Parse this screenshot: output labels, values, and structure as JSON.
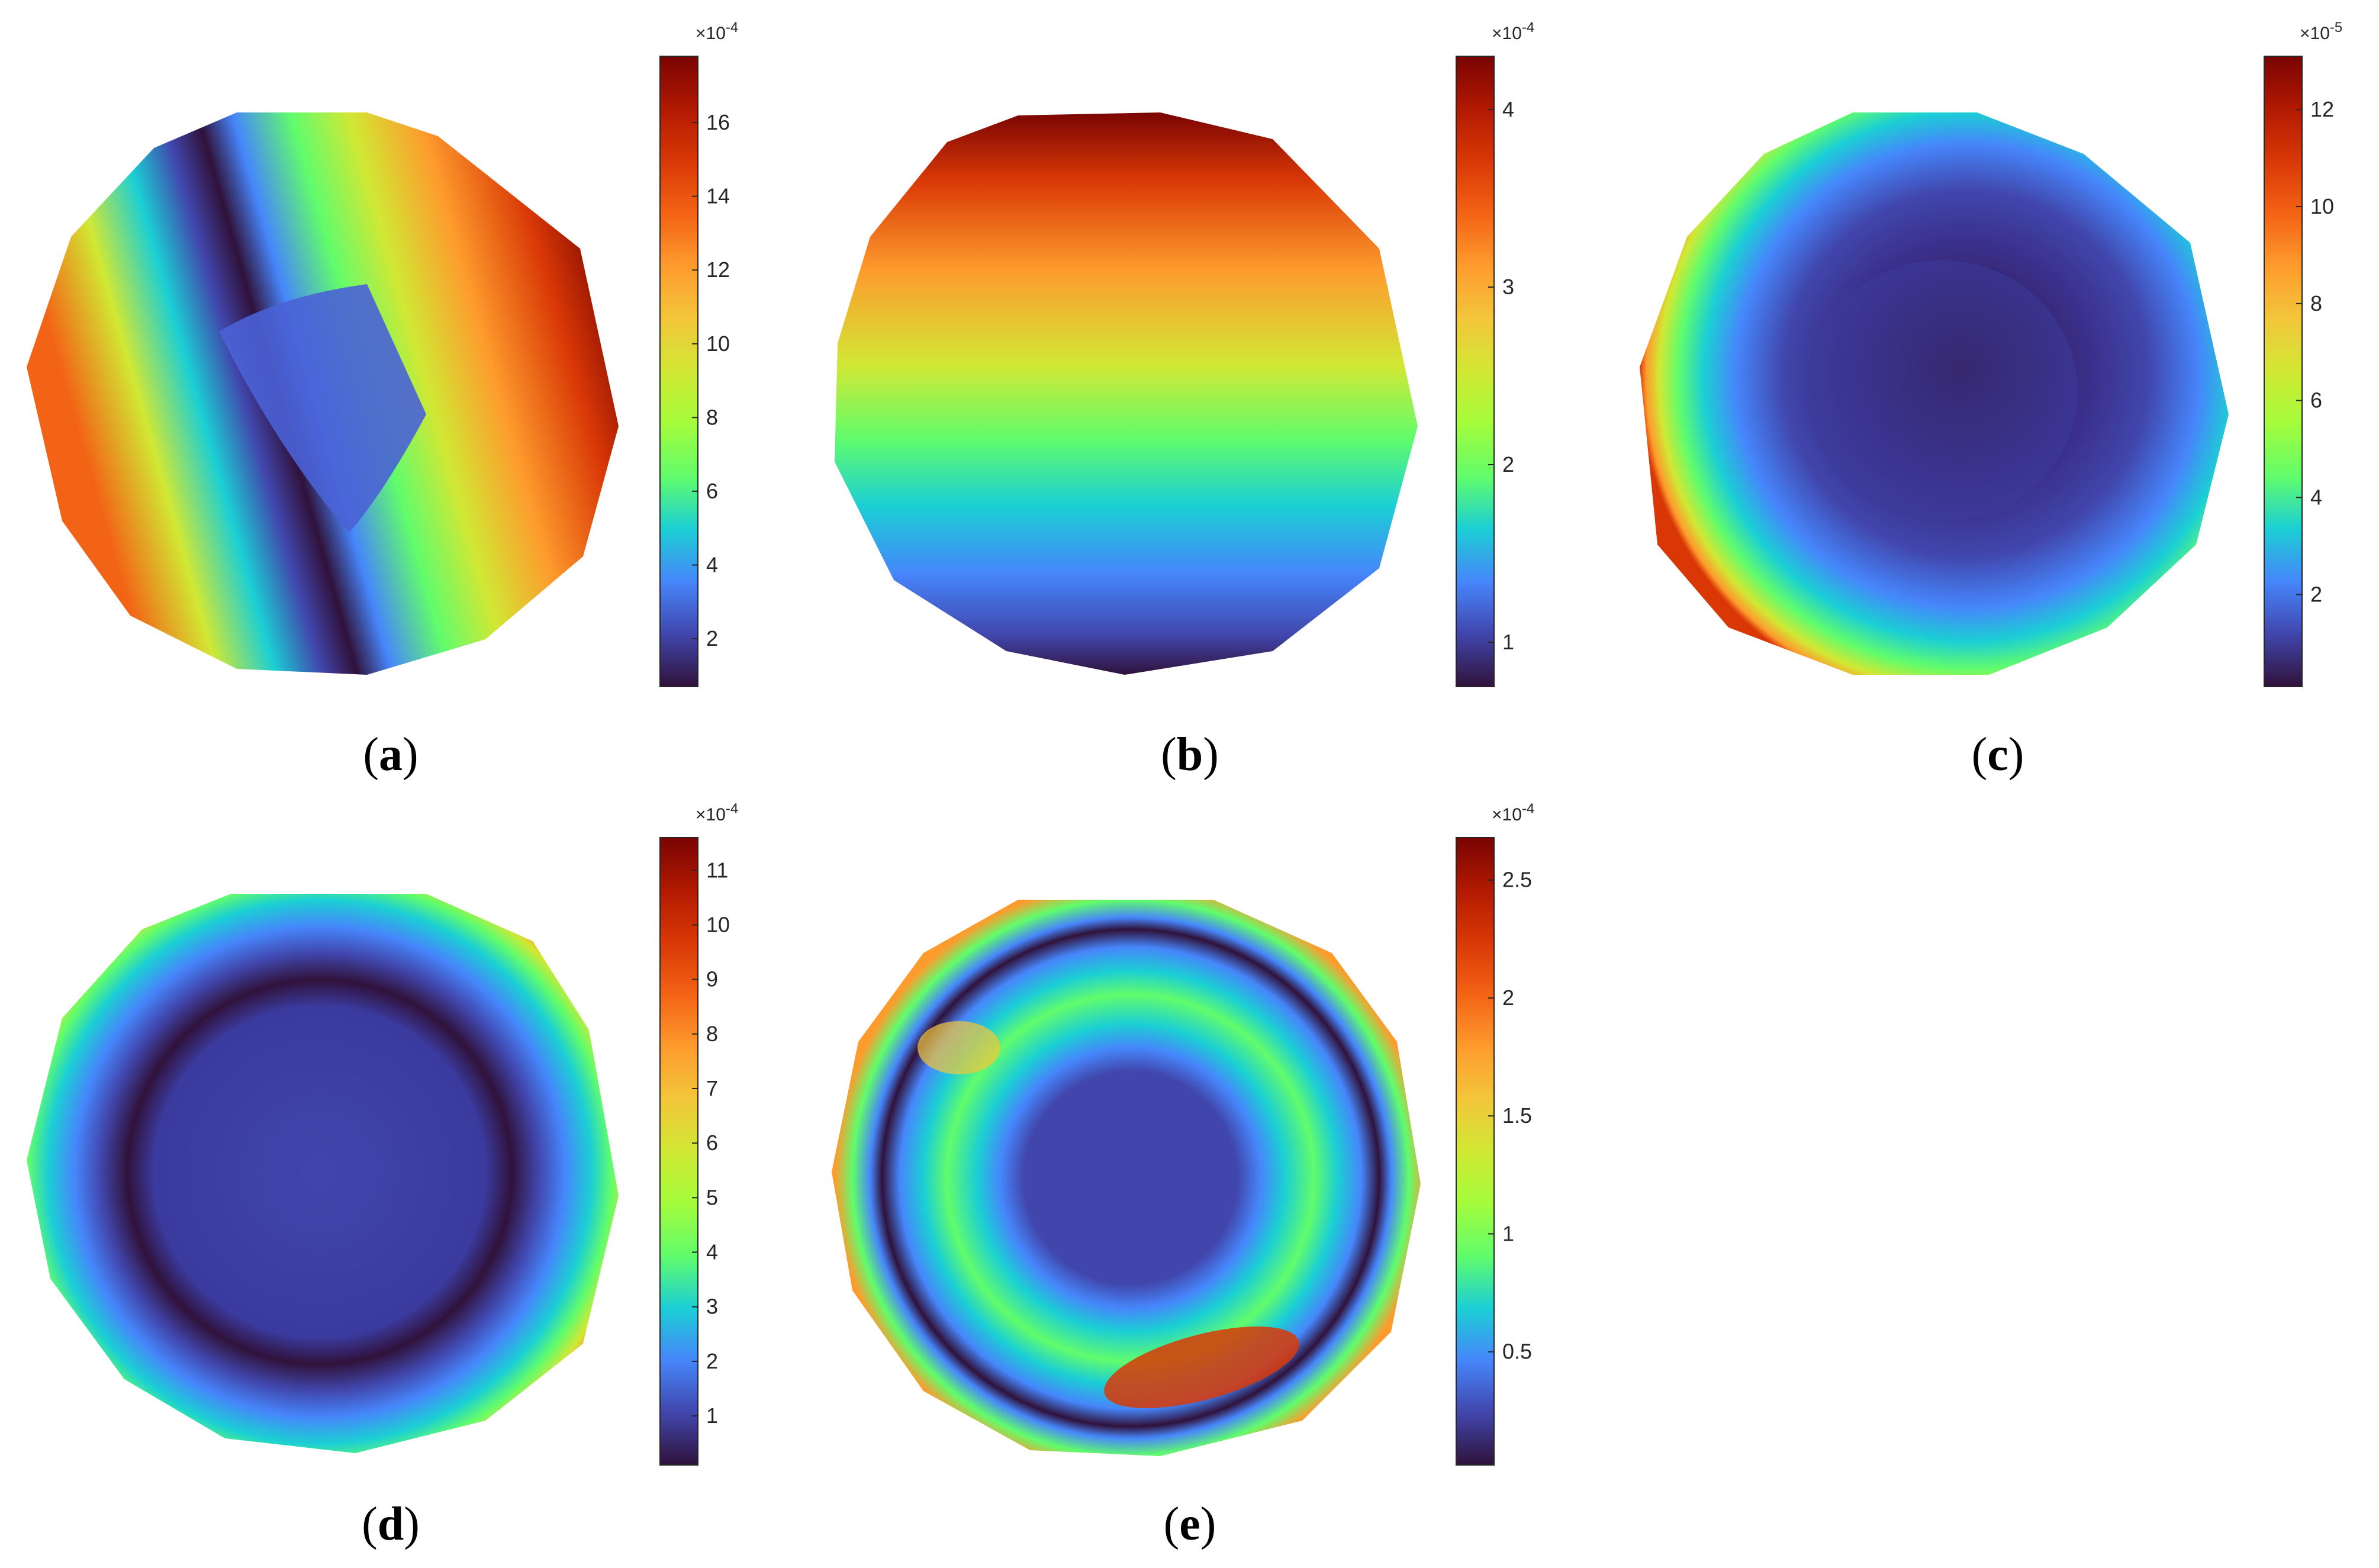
{
  "figure": {
    "colormap": [
      "#30123b",
      "#4146ac",
      "#4686fb",
      "#1bcfd4",
      "#61fc6c",
      "#a4fc3b",
      "#d1e834",
      "#f3c63a",
      "#fe9b2d",
      "#f36315",
      "#d93806",
      "#b11901",
      "#7a0402"
    ],
    "panels": [
      {
        "caption_open": "(",
        "caption_letter": "a",
        "caption_close": ")",
        "colorbar": {
          "exponent_label": "×10",
          "exponent_power": "-4",
          "min": 0.7,
          "max": 17.8,
          "ticks": [
            "2",
            "4",
            "6",
            "8",
            "10",
            "12",
            "14",
            "16"
          ]
        },
        "field_pattern": "diagonal-stripes"
      },
      {
        "caption_open": "(",
        "caption_letter": "b",
        "caption_close": ")",
        "colorbar": {
          "exponent_label": "×10",
          "exponent_power": "-4",
          "min": 0.75,
          "max": 4.3,
          "ticks": [
            "1",
            "2",
            "3",
            "4"
          ]
        },
        "field_pattern": "vertical-gradient"
      },
      {
        "caption_open": "(",
        "caption_letter": "c",
        "caption_close": ")",
        "colorbar": {
          "exponent_label": "×10",
          "exponent_power": "-5",
          "min": 0.1,
          "max": 13.1,
          "ticks": [
            "2",
            "4",
            "6",
            "8",
            "10",
            "12"
          ]
        },
        "field_pattern": "off-center-bowl"
      },
      {
        "caption_open": "(",
        "caption_letter": "d",
        "caption_close": ")",
        "colorbar": {
          "exponent_label": "×10",
          "exponent_power": "-4",
          "min": 0.1,
          "max": 11.6,
          "ticks": [
            "1",
            "2",
            "3",
            "4",
            "5",
            "6",
            "7",
            "8",
            "9",
            "10",
            "11"
          ]
        },
        "field_pattern": "ring-bowl"
      },
      {
        "caption_open": "(",
        "caption_letter": "e",
        "caption_close": ")",
        "colorbar": {
          "exponent_label": "×10",
          "exponent_power": "-4",
          "min": 0.02,
          "max": 2.68,
          "ticks": [
            "0.5",
            "1",
            "1.5",
            "2",
            "2.5"
          ]
        },
        "field_pattern": "double-ring"
      }
    ]
  },
  "chart_data": [
    {
      "type": "heatmap",
      "panel": "a",
      "color_range": [
        0.7,
        17.8
      ],
      "scale_factor": "1e-4",
      "colorbar_ticks": [
        2,
        4,
        6,
        8,
        10,
        12,
        14,
        16
      ]
    },
    {
      "type": "heatmap",
      "panel": "b",
      "color_range": [
        0.75,
        4.3
      ],
      "scale_factor": "1e-4",
      "colorbar_ticks": [
        1,
        2,
        3,
        4
      ]
    },
    {
      "type": "heatmap",
      "panel": "c",
      "color_range": [
        0.1,
        13.1
      ],
      "scale_factor": "1e-5",
      "colorbar_ticks": [
        2,
        4,
        6,
        8,
        10,
        12
      ]
    },
    {
      "type": "heatmap",
      "panel": "d",
      "color_range": [
        0.1,
        11.6
      ],
      "scale_factor": "1e-4",
      "colorbar_ticks": [
        1,
        2,
        3,
        4,
        5,
        6,
        7,
        8,
        9,
        10,
        11
      ]
    },
    {
      "type": "heatmap",
      "panel": "e",
      "color_range": [
        0.02,
        2.68
      ],
      "scale_factor": "1e-4",
      "colorbar_ticks": [
        0.5,
        1,
        1.5,
        2,
        2.5
      ]
    }
  ]
}
